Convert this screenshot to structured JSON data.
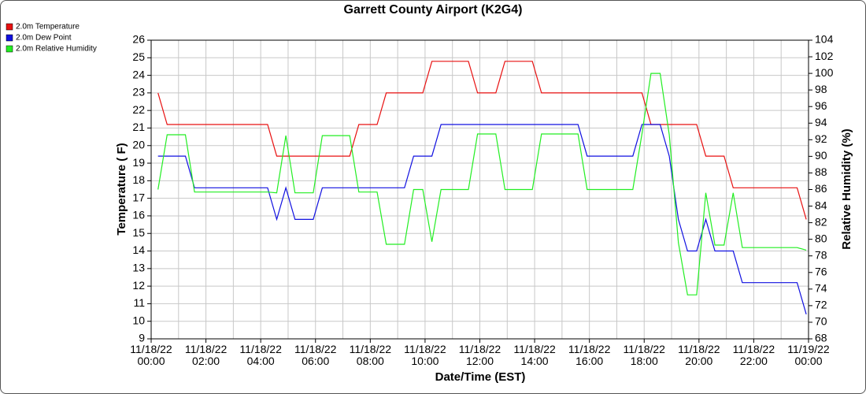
{
  "chart_data": {
    "type": "line",
    "title": "Garrett County Airport (K2G4)",
    "x_label": "Date/Time (EST)",
    "y_label": "Temperature ( F)",
    "y2_label": "Relative Humidity (%)",
    "x": [
      "11/18/22 00:15",
      "11/18/22 00:35",
      "11/18/22 00:55",
      "11/18/22 01:15",
      "11/18/22 01:35",
      "11/18/22 01:55",
      "11/18/22 02:15",
      "11/18/22 02:35",
      "11/18/22 02:55",
      "11/18/22 03:15",
      "11/18/22 03:35",
      "11/18/22 03:55",
      "11/18/22 04:15",
      "11/18/22 04:35",
      "11/18/22 04:55",
      "11/18/22 05:15",
      "11/18/22 05:35",
      "11/18/22 05:55",
      "11/18/22 06:15",
      "11/18/22 06:35",
      "11/18/22 06:55",
      "11/18/22 07:15",
      "11/18/22 07:35",
      "11/18/22 07:55",
      "11/18/22 08:15",
      "11/18/22 08:35",
      "11/18/22 08:55",
      "11/18/22 09:15",
      "11/18/22 09:35",
      "11/18/22 09:55",
      "11/18/22 10:15",
      "11/18/22 10:35",
      "11/18/22 10:55",
      "11/18/22 11:15",
      "11/18/22 11:35",
      "11/18/22 11:55",
      "11/18/22 12:15",
      "11/18/22 12:35",
      "11/18/22 12:55",
      "11/18/22 13:15",
      "11/18/22 13:35",
      "11/18/22 13:55",
      "11/18/22 14:15",
      "11/18/22 14:35",
      "11/18/22 14:55",
      "11/18/22 15:15",
      "11/18/22 15:35",
      "11/18/22 15:55",
      "11/18/22 16:15",
      "11/18/22 16:35",
      "11/18/22 16:55",
      "11/18/22 17:15",
      "11/18/22 17:35",
      "11/18/22 17:55",
      "11/18/22 18:15",
      "11/18/22 18:35",
      "11/18/22 18:55",
      "11/18/22 19:15",
      "11/18/22 19:35",
      "11/18/22 19:55",
      "11/18/22 20:15",
      "11/18/22 20:35",
      "11/18/22 20:55",
      "11/18/22 21:15",
      "11/18/22 21:35",
      "11/18/22 21:55",
      "11/18/22 22:15",
      "11/18/22 22:35",
      "11/18/22 22:55",
      "11/18/22 23:15",
      "11/18/22 23:35",
      "11/18/22 23:55"
    ],
    "series": [
      {
        "name": "2.0m Temperature",
        "color": "#e81010",
        "values": [
          23,
          21.2,
          21.2,
          21.2,
          21.2,
          21.2,
          21.2,
          21.2,
          21.2,
          21.2,
          21.2,
          21.2,
          21.2,
          19.4,
          19.4,
          19.4,
          19.4,
          19.4,
          19.4,
          19.4,
          19.4,
          19.4,
          21.2,
          21.2,
          21.2,
          23,
          23,
          23,
          23,
          23,
          24.8,
          24.8,
          24.8,
          24.8,
          24.8,
          23,
          23,
          23,
          24.8,
          24.8,
          24.8,
          24.8,
          23,
          23,
          23,
          23,
          23,
          23,
          23,
          23,
          23,
          23,
          23,
          23,
          21.2,
          21.2,
          21.2,
          21.2,
          21.2,
          21.2,
          19.4,
          19.4,
          19.4,
          17.6,
          17.6,
          17.6,
          17.6,
          17.6,
          17.6,
          17.6,
          17.6,
          15.8
        ]
      },
      {
        "name": "2.0m Dew Point",
        "color": "#1010e0",
        "values": [
          19.4,
          19.4,
          19.4,
          19.4,
          17.6,
          17.6,
          17.6,
          17.6,
          17.6,
          17.6,
          17.6,
          17.6,
          17.6,
          15.8,
          17.6,
          15.8,
          15.8,
          15.8,
          17.6,
          17.6,
          17.6,
          17.6,
          17.6,
          17.6,
          17.6,
          17.6,
          17.6,
          17.6,
          19.4,
          19.4,
          19.4,
          21.2,
          21.2,
          21.2,
          21.2,
          21.2,
          21.2,
          21.2,
          21.2,
          21.2,
          21.2,
          21.2,
          21.2,
          21.2,
          21.2,
          21.2,
          21.2,
          19.4,
          19.4,
          19.4,
          19.4,
          19.4,
          19.4,
          21.2,
          21.2,
          21.2,
          19.4,
          15.8,
          14,
          14,
          15.8,
          14,
          14,
          14,
          12.2,
          12.2,
          12.2,
          12.2,
          12.2,
          12.2,
          12.2,
          10.4
        ]
      },
      {
        "name": "2.0m Relative Humidity",
        "color": "#22ee22",
        "axis": "y2",
        "values": [
          86,
          92.6,
          92.6,
          92.6,
          85.7,
          85.7,
          85.7,
          85.7,
          85.7,
          85.7,
          85.7,
          85.7,
          85.7,
          85.6,
          92.5,
          85.6,
          85.6,
          85.6,
          92.5,
          92.5,
          92.5,
          92.5,
          85.7,
          85.7,
          85.7,
          79.4,
          79.4,
          79.4,
          86,
          86,
          79.7,
          86,
          86,
          86,
          86,
          92.7,
          92.7,
          92.7,
          86,
          86,
          86,
          86,
          92.7,
          92.7,
          92.7,
          92.7,
          92.7,
          86,
          86,
          86,
          86,
          86,
          86,
          92.7,
          100,
          100,
          92.6,
          79.6,
          73.3,
          73.3,
          85.6,
          79.3,
          79.3,
          85.6,
          79,
          79,
          79,
          79,
          79,
          79,
          79,
          78.7
        ]
      }
    ],
    "xlim": [
      "11/18/22 00:00",
      "11/19/22 00:00"
    ],
    "xticks": [
      "11/18/22 00:00",
      "11/18/22 02:00",
      "11/18/22 04:00",
      "11/18/22 06:00",
      "11/18/22 08:00",
      "11/18/22 10:00",
      "11/18/22 12:00",
      "11/18/22 14:00",
      "11/18/22 16:00",
      "11/18/22 18:00",
      "11/18/22 20:00",
      "11/18/22 22:00",
      "11/19/22 00:00"
    ],
    "ylim": [
      9,
      26
    ],
    "yticks": [
      9,
      10,
      11,
      12,
      13,
      14,
      15,
      16,
      17,
      18,
      19,
      20,
      21,
      22,
      23,
      24,
      25,
      26
    ],
    "y2lim": [
      68,
      104
    ],
    "y2ticks": [
      68,
      70,
      72,
      74,
      76,
      78,
      80,
      82,
      84,
      86,
      88,
      90,
      92,
      94,
      96,
      98,
      100,
      102,
      104
    ],
    "grid": true,
    "legend": "top-left"
  }
}
